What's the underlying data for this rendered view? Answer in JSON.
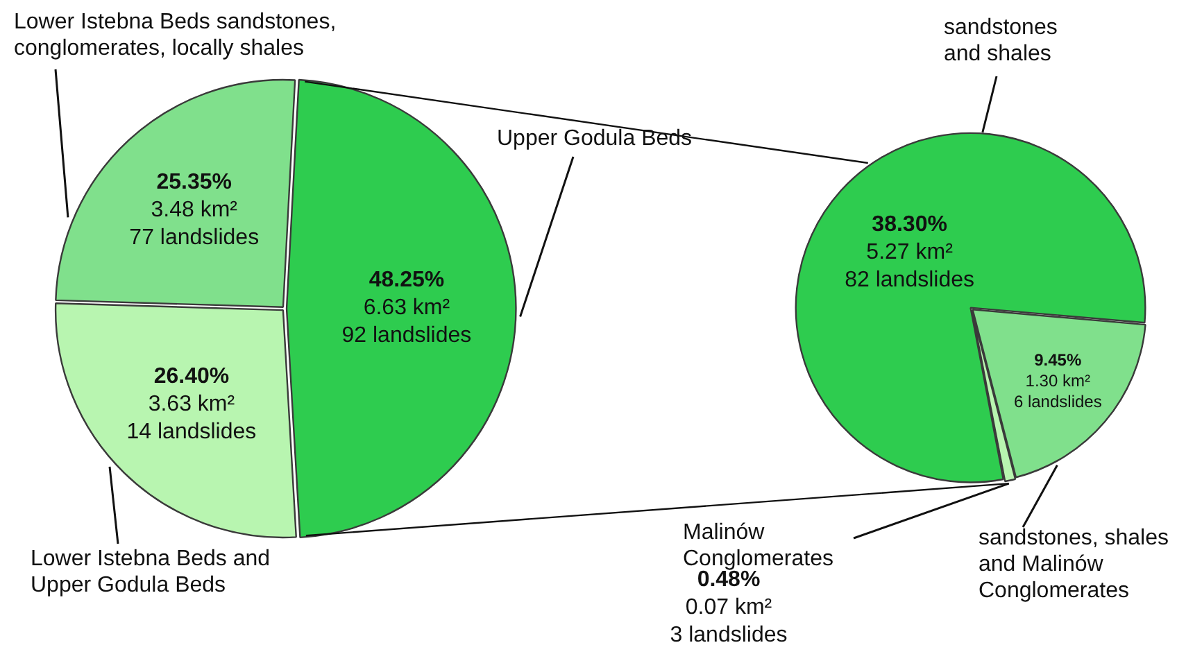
{
  "chart_data": [
    {
      "type": "pie",
      "categories": [
        "Upper Godula Beds",
        "Lower Istebna Beds and Upper Godula Beds",
        "Lower Istebna Beds sandstones, conglomerates, locally shales"
      ],
      "values": [
        48.25,
        26.4,
        25.35
      ],
      "colors": [
        "#2ecc4f",
        "#b8f5b0",
        "#80e08c"
      ],
      "value_labels": [
        "48.25%\n6.63 km²\n92 landslides",
        "26.40%\n3.63 km²\n14 landslides",
        "25.35%\n3.48 km²\n77 landslides"
      ]
    },
    {
      "type": "pie",
      "categories": [
        "sandstones, shales and Malinów Conglomerates",
        "Malinów Conglomerates",
        "sandstones and shales"
      ],
      "values": [
        9.45,
        0.48,
        38.3
      ],
      "colors": [
        "#80e08c",
        "#b8f5b0",
        "#2ecc4f"
      ],
      "value_labels": [
        "9.45%\n1.30 km²\n6 landslides",
        "0.48%\n0.07 km²\n3 landslides",
        "38.30%\n5.27 km²\n82 landslides"
      ]
    }
  ]
}
